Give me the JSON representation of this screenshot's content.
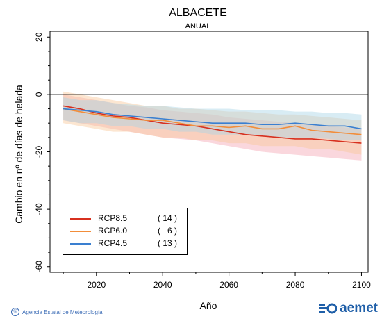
{
  "header": {
    "title": "ALBACETE",
    "subtitle": "ANUAL"
  },
  "footer": {
    "agency": "Agencia Estatal de Meteorología",
    "copyright_symbol": "©",
    "brand": "aemet"
  },
  "colors": {
    "rcp85": "#d7301f",
    "rcp60": "#f28d3a",
    "rcp45": "#3a7fd0",
    "rcp85_band": "#f4a7b4",
    "rcp60_band": "#f9c89a",
    "rcp45_band": "#a9d4e6",
    "brand": "#1f5fa8"
  },
  "chart_data": {
    "type": "line",
    "title": "ALBACETE",
    "subtitle": "ANUAL",
    "xlabel": "Año",
    "ylabel": "Cambio en nº de días de helada",
    "xlim": [
      2006,
      2102
    ],
    "ylim": [
      -62,
      22
    ],
    "xticks": [
      2020,
      2040,
      2060,
      2080,
      2100
    ],
    "yticks": [
      20,
      0,
      -20,
      -40,
      -60
    ],
    "reference_line": 0,
    "legend_position": "bottom-left",
    "x": [
      2010,
      2015,
      2020,
      2025,
      2030,
      2035,
      2040,
      2045,
      2050,
      2055,
      2060,
      2065,
      2070,
      2075,
      2080,
      2085,
      2090,
      2095,
      2100
    ],
    "series": [
      {
        "name": "RCP8.5",
        "count": "( 14 )",
        "values": [
          -4,
          -5,
          -6.5,
          -7.5,
          -8,
          -9,
          -10,
          -10.5,
          -11,
          -12,
          -13,
          -14,
          -14.5,
          -15,
          -15.5,
          -15.5,
          -16,
          -16.5,
          -17
        ],
        "lower": [
          -9,
          -10,
          -11,
          -12,
          -13,
          -14,
          -15,
          -15.5,
          -16,
          -17,
          -18,
          -19,
          -20,
          -20.5,
          -21,
          -21.5,
          -22,
          -22.5,
          -23
        ],
        "upper": [
          0,
          -1,
          -2,
          -3,
          -4,
          -4.5,
          -5.5,
          -6,
          -6.5,
          -7,
          -8,
          -8.5,
          -9,
          -9.5,
          -10,
          -10.5,
          -11,
          -11.5,
          -12
        ]
      },
      {
        "name": "RCP6.0",
        "count": "(   6 )",
        "values": [
          -5,
          -6,
          -7,
          -8,
          -8.5,
          -9,
          -9,
          -10,
          -11,
          -11,
          -11.5,
          -11,
          -12,
          -12,
          -11,
          -12.5,
          -13,
          -13.5,
          -14
        ],
        "lower": [
          -10,
          -11,
          -12,
          -13,
          -13,
          -14,
          -15,
          -15,
          -16,
          -16,
          -17,
          -17,
          -18,
          -18,
          -18,
          -19,
          -19,
          -20,
          -21
        ],
        "upper": [
          1,
          0,
          -1,
          -2,
          -3,
          -4,
          -4,
          -5,
          -5,
          -5.5,
          -6,
          -6,
          -6.5,
          -7,
          -7,
          -7.5,
          -8,
          -8.5,
          -9
        ]
      },
      {
        "name": "RCP4.5",
        "count": "( 13 )",
        "values": [
          -5,
          -5.5,
          -6,
          -7,
          -7.5,
          -8,
          -8.5,
          -9,
          -9.5,
          -10,
          -10,
          -10,
          -10.5,
          -10.5,
          -10,
          -10.5,
          -11,
          -11,
          -12
        ],
        "lower": [
          -9,
          -10,
          -10,
          -11,
          -11,
          -12,
          -12,
          -13,
          -13,
          -14,
          -14,
          -14,
          -14.5,
          -15,
          -15,
          -15,
          -15.5,
          -16,
          -16
        ],
        "upper": [
          -1,
          -2,
          -2,
          -3,
          -3.5,
          -4,
          -4,
          -4.5,
          -5,
          -5,
          -5,
          -5.5,
          -5.5,
          -5.5,
          -6,
          -6,
          -6.5,
          -6.5,
          -7
        ]
      }
    ]
  }
}
